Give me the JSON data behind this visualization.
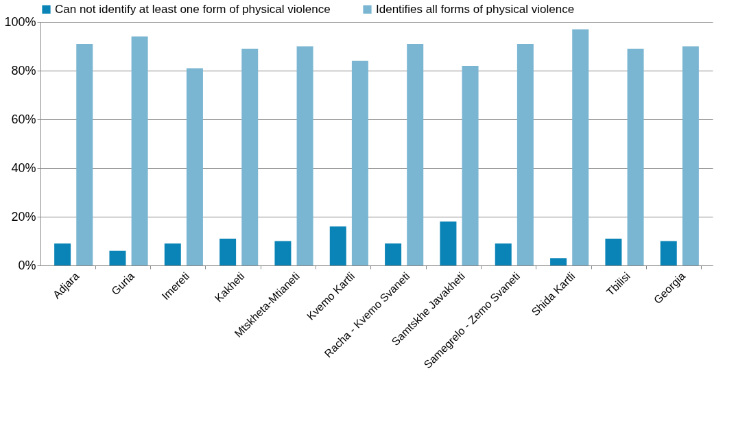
{
  "chart_data": {
    "type": "bar",
    "categories": [
      "Adjara",
      "Guria",
      "Imereti",
      "Kakheti",
      "Mtskheta-Mtianeti",
      "Kvemo Kartli",
      "Racha - Kvemo Svaneti",
      "Samtskhe Javakheti",
      "Samegrelo - Zemo Svaneti",
      "Shida Kartli",
      "Tbilisi",
      "Georgia"
    ],
    "series": [
      {
        "name": "Can not identify at least one form of physical  violence",
        "color": "#0a84b6",
        "values": [
          9,
          6,
          9,
          11,
          10,
          16,
          9,
          18,
          9,
          3,
          11,
          10
        ]
      },
      {
        "name": "Identifies all forms of physical  violence",
        "color": "#7ab6d2",
        "values": [
          91,
          94,
          81,
          89,
          90,
          84,
          91,
          82,
          91,
          97,
          89,
          90
        ]
      }
    ],
    "ylim": [
      0,
      100
    ],
    "yticks": [
      {
        "value": 0,
        "label": "0%"
      },
      {
        "value": 20,
        "label": "20%"
      },
      {
        "value": 40,
        "label": "40%"
      },
      {
        "value": 60,
        "label": "60%"
      },
      {
        "value": 80,
        "label": "80%"
      },
      {
        "value": 100,
        "label": "100%"
      }
    ],
    "grid": "y",
    "legend": "top"
  }
}
